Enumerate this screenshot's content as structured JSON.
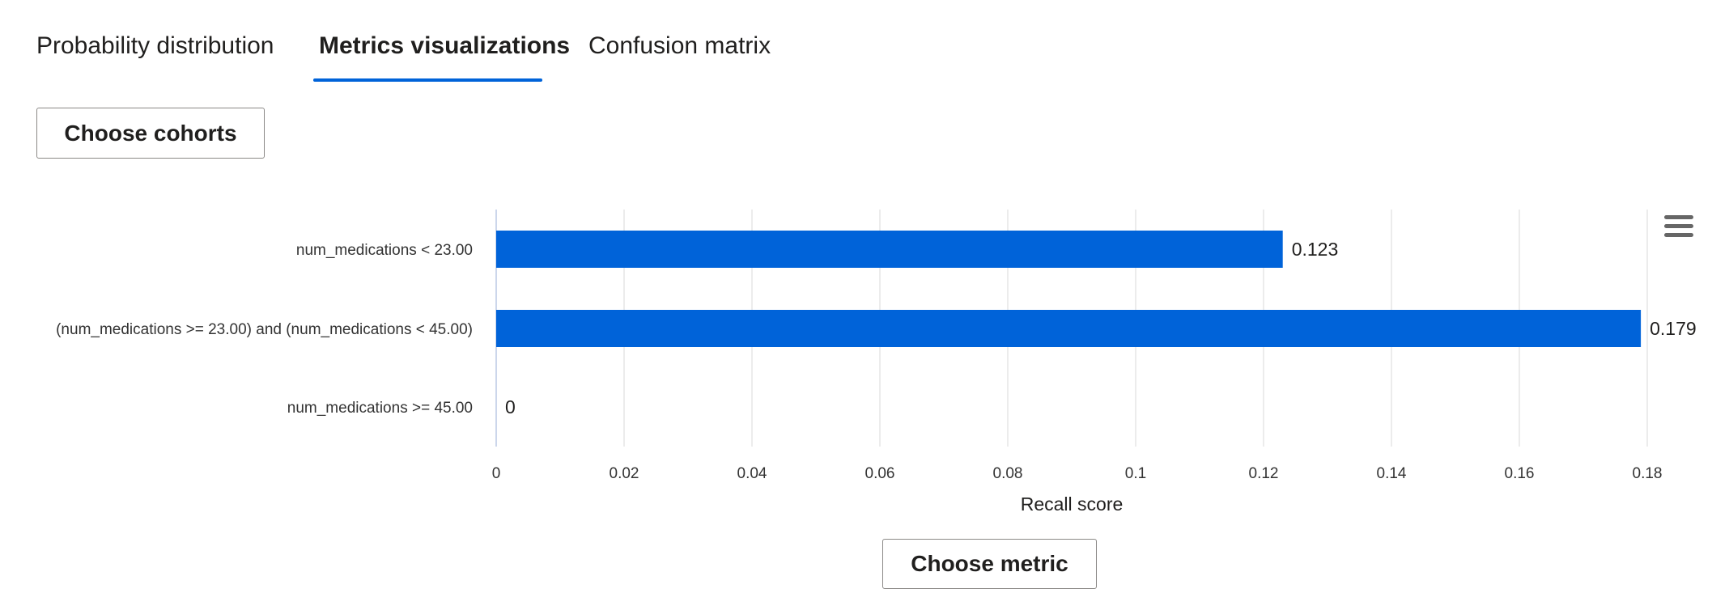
{
  "tabs": [
    {
      "label": "Probability distribution"
    },
    {
      "label": "Metrics visualizations"
    },
    {
      "label": "Confusion matrix"
    }
  ],
  "buttons": {
    "choose_cohorts": "Choose cohorts",
    "choose_metric": "Choose metric"
  },
  "chart_data": {
    "type": "bar",
    "orientation": "horizontal",
    "categories": [
      "num_medications < 23.00",
      "(num_medications >= 23.00) and (num_medications < 45.00)",
      "num_medications >= 45.00"
    ],
    "values": [
      0.123,
      0.179,
      0
    ],
    "data_labels": [
      "0.123",
      "0.179",
      "0"
    ],
    "xlabel": "Recall score",
    "xticks": [
      0,
      0.02,
      0.04,
      0.06,
      0.08,
      0.1,
      0.12,
      0.14,
      0.16,
      0.18
    ],
    "xtick_labels": [
      "0",
      "0.02",
      "0.04",
      "0.06",
      "0.08",
      "0.1",
      "0.12",
      "0.14",
      "0.16",
      "0.18"
    ],
    "xlim": [
      0,
      0.18
    ],
    "bar_color": "#0063d9",
    "grid": true
  }
}
